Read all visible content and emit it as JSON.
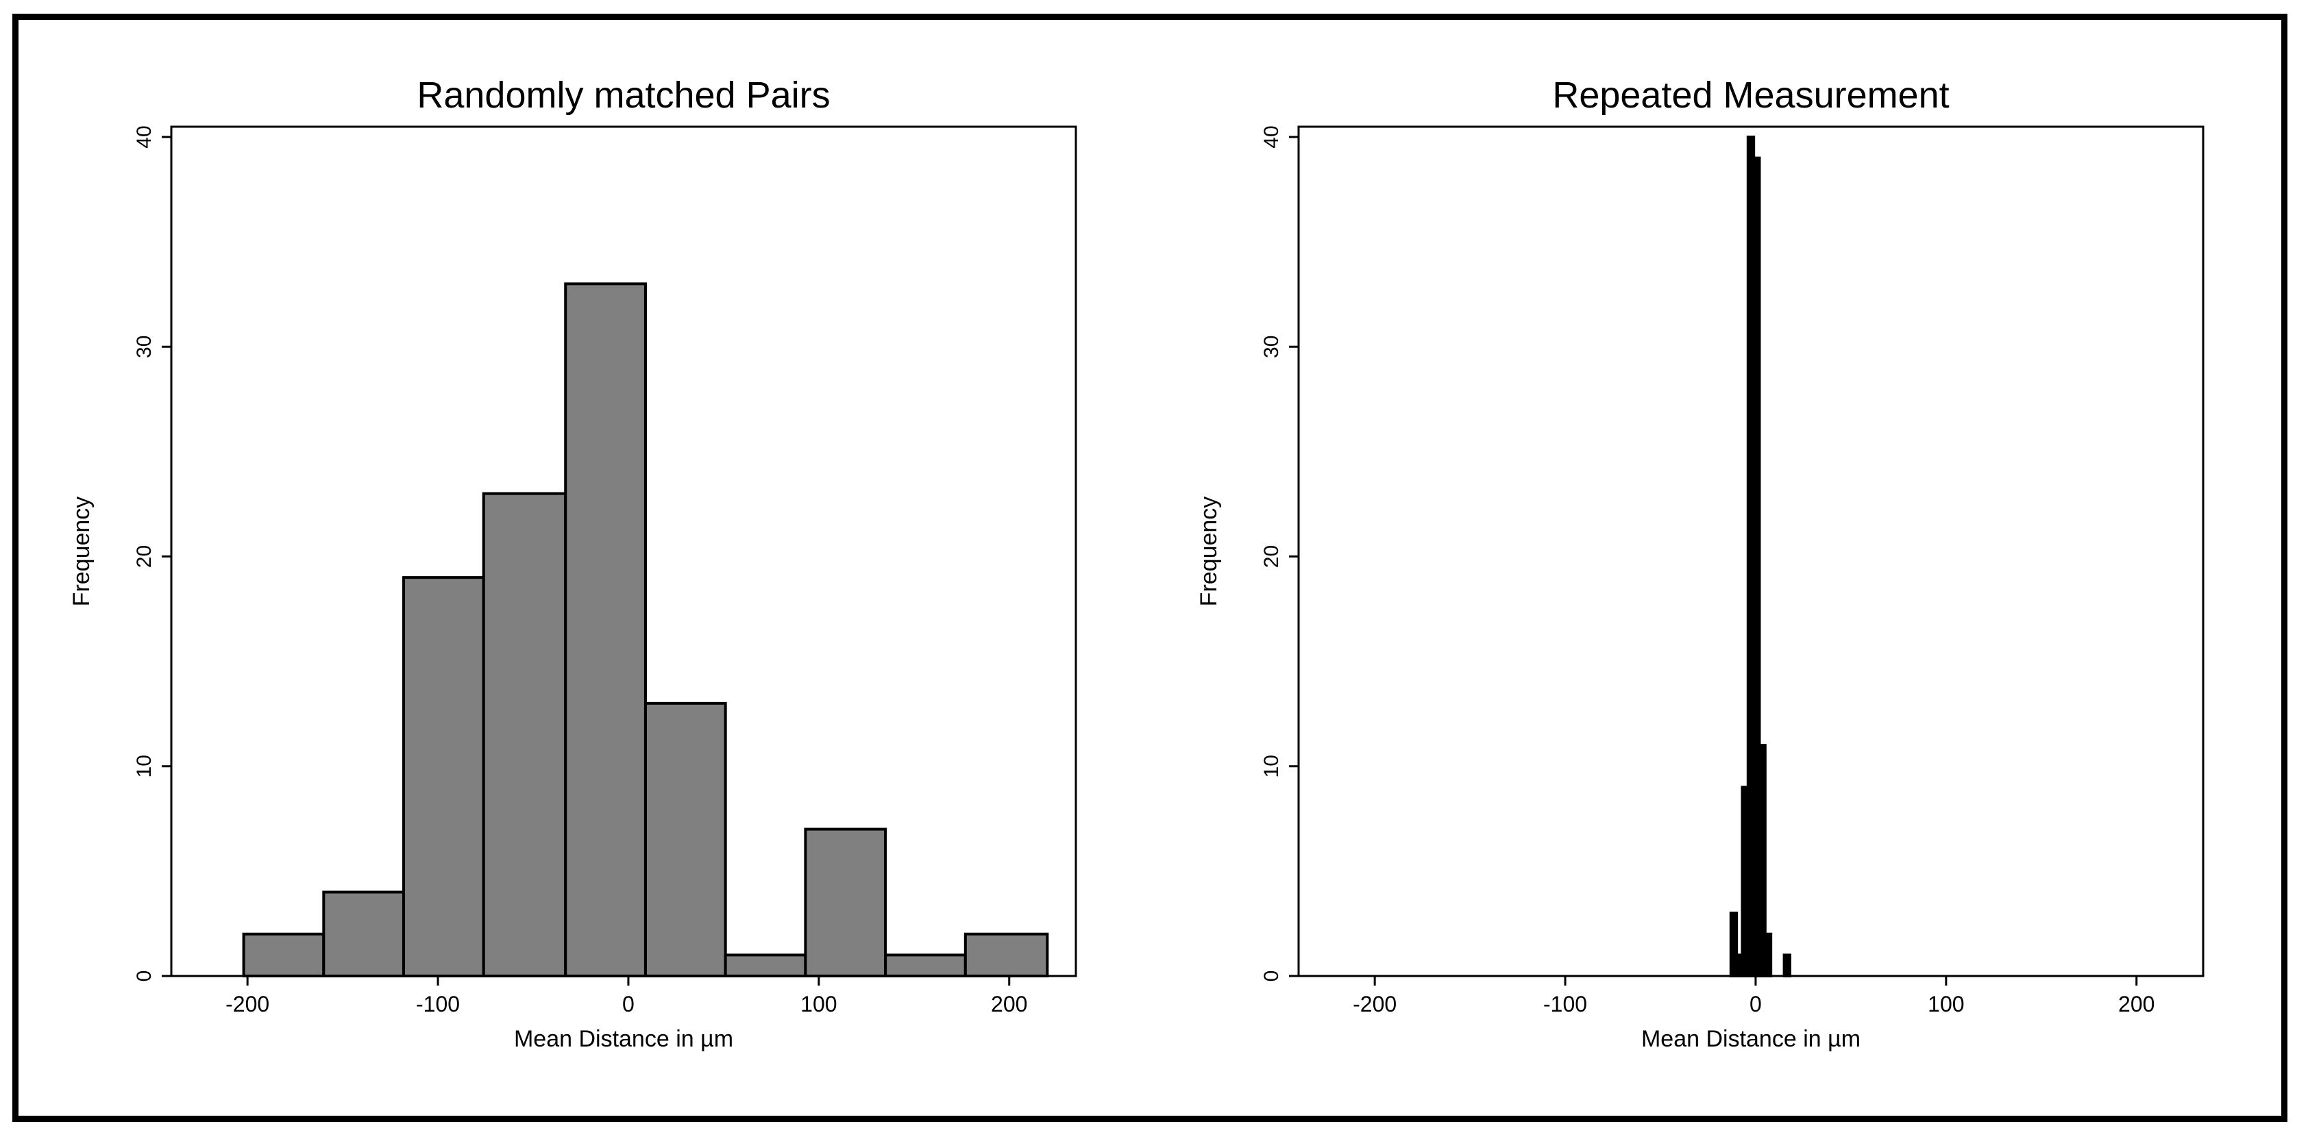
{
  "chart_data": [
    {
      "type": "bar",
      "title": "Randomly matched Pairs",
      "xlabel": "Mean Distance in µm",
      "ylabel": "Frequency",
      "xlim": [
        -240,
        235
      ],
      "ylim": [
        0,
        40
      ],
      "x_ticks": [
        "-200",
        "-100",
        "0",
        "100",
        "200"
      ],
      "y_ticks": [
        "0",
        "10",
        "20",
        "30",
        "40"
      ],
      "bins": [
        {
          "x0": -202,
          "x1": -160,
          "count": 2
        },
        {
          "x0": -160,
          "x1": -118,
          "count": 4
        },
        {
          "x0": -118,
          "x1": -76,
          "count": 19
        },
        {
          "x0": -76,
          "x1": -33,
          "count": 23
        },
        {
          "x0": -33,
          "x1": 9,
          "count": 33
        },
        {
          "x0": 9,
          "x1": 51,
          "count": 13
        },
        {
          "x0": 51,
          "x1": 93,
          "count": 1
        },
        {
          "x0": 93,
          "x1": 135,
          "count": 7
        },
        {
          "x0": 135,
          "x1": 177,
          "count": 1
        },
        {
          "x0": 177,
          "x1": 220,
          "count": 2
        }
      ],
      "bar_color": "#808080",
      "grid": false
    },
    {
      "type": "bar",
      "title": "Repeated Measurement",
      "xlabel": "Mean Distance in µm",
      "ylabel": "Frequency",
      "xlim": [
        -240,
        235
      ],
      "ylim": [
        0,
        40
      ],
      "x_ticks": [
        "-200",
        "-100",
        "0",
        "100",
        "200"
      ],
      "y_ticks": [
        "0",
        "10",
        "20",
        "30",
        "40"
      ],
      "bins": [
        {
          "x0": -13,
          "x1": -10,
          "count": 3
        },
        {
          "x0": -10,
          "x1": -7,
          "count": 1
        },
        {
          "x0": -7,
          "x1": -4,
          "count": 9
        },
        {
          "x0": -4,
          "x1": -1,
          "count": 40
        },
        {
          "x0": -1,
          "x1": 2,
          "count": 39
        },
        {
          "x0": 2,
          "x1": 5,
          "count": 11
        },
        {
          "x0": 5,
          "x1": 8,
          "count": 2
        },
        {
          "x0": 15,
          "x1": 18,
          "count": 1
        }
      ],
      "bar_color": "#000000",
      "grid": false
    }
  ]
}
